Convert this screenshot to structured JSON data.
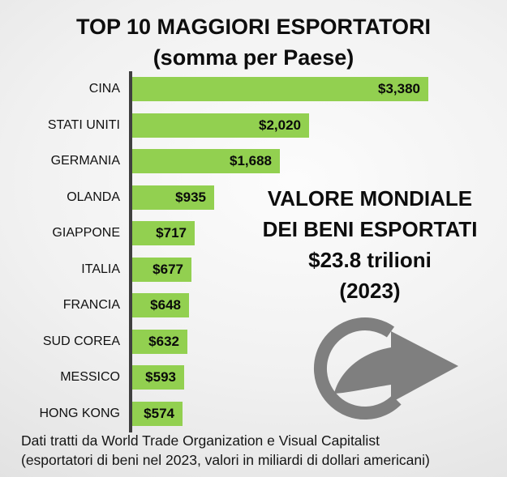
{
  "title": {
    "line1": "TOP 10 MAGGIORI ESPORTATORI",
    "line2": "(somma per Paese)"
  },
  "chart_data": {
    "type": "bar",
    "orientation": "horizontal",
    "title": "TOP 10 MAGGIORI ESPORTATORI (somma per Paese)",
    "categories": [
      "CINA",
      "STATI UNITI",
      "GERMANIA",
      "OLANDA",
      "GIAPPONE",
      "ITALIA",
      "FRANCIA",
      "SUD COREA",
      "MESSICO",
      "HONG KONG"
    ],
    "values": [
      3380,
      2020,
      1688,
      935,
      717,
      677,
      648,
      632,
      593,
      574
    ],
    "value_labels": [
      "$3,380",
      "$2,020",
      "$1,688",
      "$935",
      "$717",
      "$677",
      "$648",
      "$632",
      "$593",
      "$574"
    ],
    "xlabel": "",
    "ylabel": "",
    "xlim": [
      0,
      3380
    ],
    "units": "miliardi di dollari americani",
    "grid": false,
    "legend": false,
    "bar_color": "#92d050"
  },
  "annotation": {
    "line1": "VALORE MONDIALE",
    "line2": "DEI BENI ESPORTATI",
    "line3": "$23.8 trilioni",
    "line4": "(2023)"
  },
  "icons": {
    "export_arrow": "circular-arrow-right"
  },
  "footer": {
    "line1": "Dati tratti da World Trade Organization e Visual Capitalist",
    "line2": "(esportatori di beni nel 2023, valori in miliardi di dollari americani)"
  },
  "colors": {
    "bar": "#92d050",
    "axis": "#3f3f3f",
    "arrow": "#7f7f7f",
    "text": "#000000"
  }
}
